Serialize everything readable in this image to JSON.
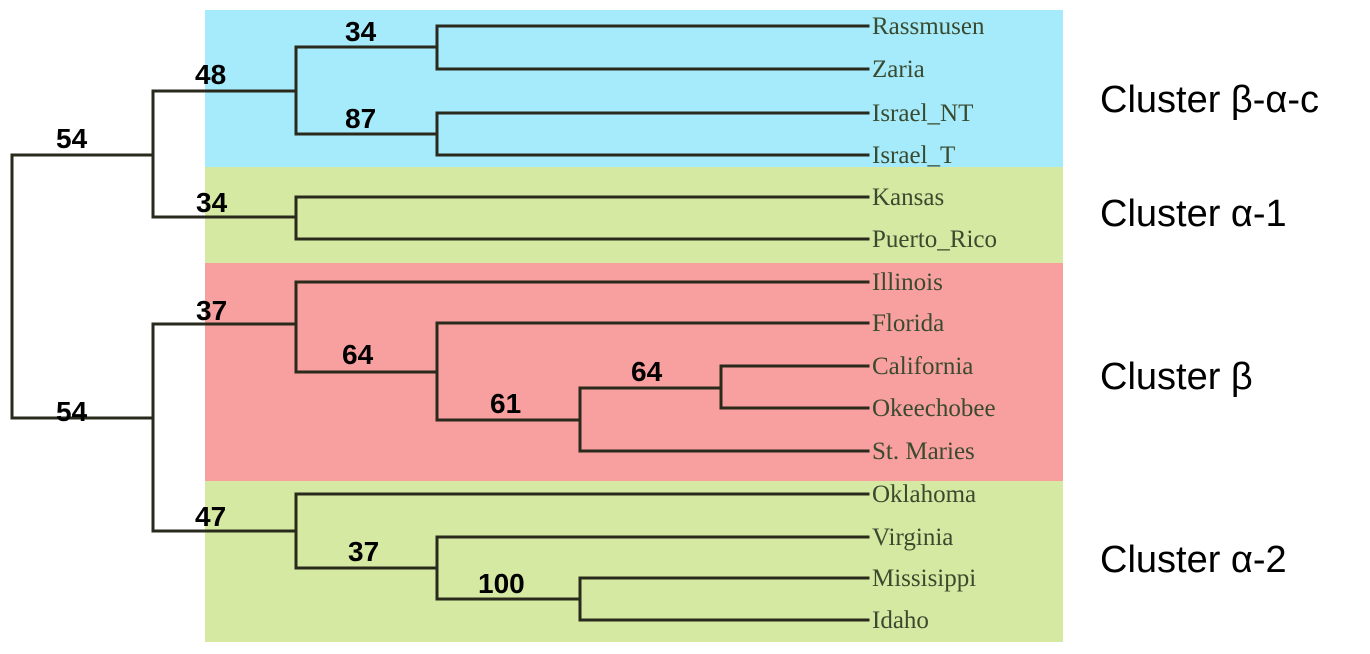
{
  "taxa": [
    "Rassmusen",
    "Zaria",
    "Israel_NT",
    "Israel_T",
    "Kansas",
    "Puerto_Rico",
    "Illinois",
    "Florida",
    "California",
    "Okeechobee",
    "St. Maries",
    "Oklahoma",
    "Virginia",
    "Missisippi",
    "Idaho"
  ],
  "clusters": [
    {
      "label": "Cluster β-α-c",
      "color": "#a6ebfb"
    },
    {
      "label": "Cluster α-1",
      "color": "#d6e9a2"
    },
    {
      "label": "Cluster β",
      "color": "#f89f9f"
    },
    {
      "label": "Cluster α-2",
      "color": "#d6e9a2"
    }
  ],
  "bootstrap": {
    "root_upper": "54",
    "root_lower": "54",
    "beta_alpha_c": "48",
    "rassmusen_zaria": "34",
    "israel": "87",
    "alpha1": "34",
    "beta": "37",
    "florida_clade": "64",
    "california_stmaries": "61",
    "california_okeechobee": "64",
    "alpha2": "47",
    "virginia_clade": "37",
    "missisippi_idaho": "100"
  }
}
